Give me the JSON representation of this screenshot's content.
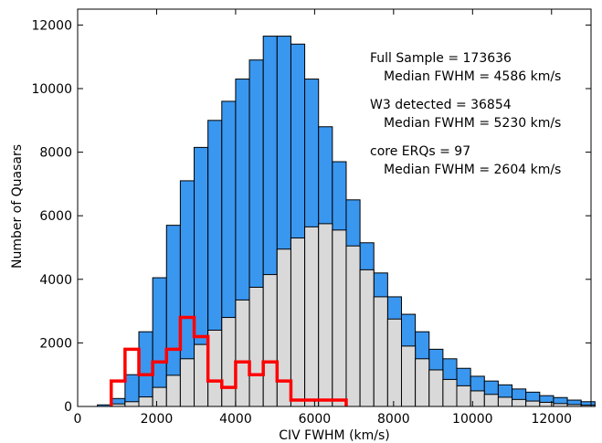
{
  "chart_data": {
    "type": "bar",
    "xlabel": "CIV FWHM (km/s)",
    "ylabel": "Number of Quasars",
    "xlim": [
      0,
      13000
    ],
    "ylim": [
      0,
      12500
    ],
    "xticks": [
      0,
      2000,
      4000,
      6000,
      8000,
      10000,
      12000
    ],
    "yticks": [
      0,
      2000,
      4000,
      6000,
      8000,
      10000,
      12000
    ],
    "bin_width": 350,
    "bin_starts": [
      500,
      850,
      1200,
      1550,
      1900,
      2250,
      2600,
      2950,
      3300,
      3650,
      4000,
      4350,
      4700,
      5050,
      5400,
      5750,
      6100,
      6450,
      6800,
      7150,
      7500,
      7850,
      8200,
      8550,
      8900,
      9250,
      9600,
      9950,
      10300,
      10650,
      11000,
      11350,
      11700,
      12050,
      12400,
      12750
    ],
    "series": [
      {
        "name": "Full Sample",
        "color": "#3a97f0",
        "values": [
          50,
          250,
          1000,
          2350,
          4050,
          5700,
          7100,
          8150,
          9000,
          9600,
          10300,
          10900,
          11650,
          11650,
          11400,
          10300,
          8800,
          7700,
          6500,
          5150,
          4200,
          3450,
          2900,
          2350,
          1800,
          1500,
          1200,
          950,
          800,
          680,
          550,
          450,
          340,
          280,
          200,
          150
        ]
      },
      {
        "name": "W3 detected",
        "color": "#d9d9d9",
        "values": [
          0,
          80,
          150,
          300,
          600,
          980,
          1500,
          1950,
          2400,
          2800,
          3350,
          3750,
          4150,
          4950,
          5300,
          5650,
          5750,
          5550,
          5050,
          4300,
          3450,
          2750,
          1900,
          1500,
          1150,
          850,
          650,
          490,
          380,
          290,
          220,
          170,
          130,
          90,
          60,
          40
        ]
      },
      {
        "name": "core ERQs",
        "color": "#ff0000",
        "values": [
          0,
          800,
          1800,
          1000,
          1400,
          1800,
          2800,
          2200,
          800,
          600,
          1400,
          1000,
          1400,
          800,
          200,
          200,
          200,
          200,
          0,
          0,
          0,
          0,
          0,
          0,
          0,
          0,
          0,
          0,
          0,
          0,
          0,
          0,
          0,
          0,
          0,
          0
        ]
      }
    ]
  },
  "annotations": [
    {
      "line1": "Full Sample = 173636",
      "line2": "Median FWHM = 4586 km/s"
    },
    {
      "line1": "W3 detected = 36854",
      "line2": "Median FWHM = 5230 km/s"
    },
    {
      "line1": "core ERQs = 97",
      "line2": "Median FWHM = 2604 km/s"
    }
  ]
}
